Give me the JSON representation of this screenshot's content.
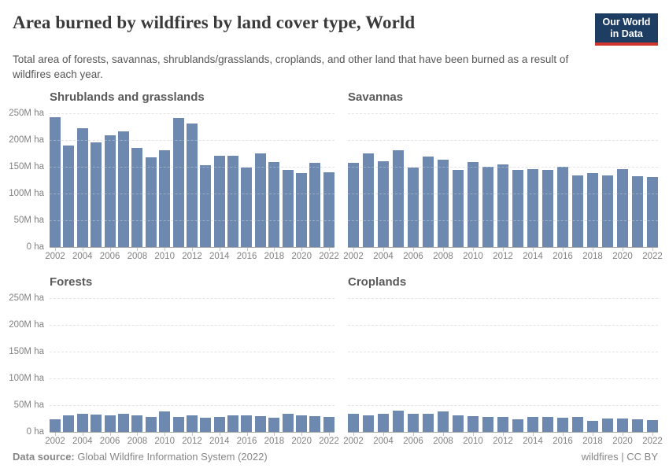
{
  "header": {
    "title": "Area burned by wildfires by land cover type, World",
    "subtitle": "Total area of forests, savannas, shrublands/grasslands, croplands, and other land that have been burned as a result of wildfires each year.",
    "logo": {
      "line1": "Our World",
      "line2": "in Data",
      "bg_color": "#1d3d63",
      "accent_color": "#d0342c"
    }
  },
  "footer": {
    "datasource_label": "Data source:",
    "datasource_value": " Global Wildfire Information System (2022)",
    "license": "wildfires | CC BY"
  },
  "colors": {
    "bar": "#6d89b0",
    "gridline": "#d9d9d9",
    "axis_text": "#828282"
  },
  "y_axis": {
    "max": 250,
    "ticks": [
      {
        "value": 250,
        "label": "250M ha"
      },
      {
        "value": 200,
        "label": "200M ha"
      },
      {
        "value": 150,
        "label": "150M ha"
      },
      {
        "value": 100,
        "label": "100M ha"
      },
      {
        "value": 50,
        "label": "50M ha"
      },
      {
        "value": 0,
        "label": "0 ha"
      }
    ]
  },
  "x_axis": {
    "label_interval": 2
  },
  "chart_data": [
    {
      "type": "bar",
      "title": "Shrublands and grasslands",
      "xlabel": "",
      "ylabel": "",
      "unit": "M ha",
      "ylim": [
        0,
        250
      ],
      "grid": "dashed",
      "legend": "none",
      "categories": [
        "2002",
        "2003",
        "2004",
        "2005",
        "2006",
        "2007",
        "2008",
        "2009",
        "2010",
        "2011",
        "2012",
        "2013",
        "2014",
        "2015",
        "2016",
        "2017",
        "2018",
        "2019",
        "2020",
        "2021",
        "2022"
      ],
      "values": [
        243,
        190,
        222,
        196,
        209,
        216,
        186,
        168,
        182,
        241,
        231,
        153,
        171,
        171,
        149,
        175,
        160,
        145,
        138,
        158,
        140
      ]
    },
    {
      "type": "bar",
      "title": "Savannas",
      "xlabel": "",
      "ylabel": "",
      "unit": "M ha",
      "ylim": [
        0,
        250
      ],
      "grid": "dashed",
      "legend": "none",
      "categories": [
        "2002",
        "2003",
        "2004",
        "2005",
        "2006",
        "2007",
        "2008",
        "2009",
        "2010",
        "2011",
        "2012",
        "2013",
        "2014",
        "2015",
        "2016",
        "2017",
        "2018",
        "2019",
        "2020",
        "2021",
        "2022"
      ],
      "values": [
        158,
        175,
        161,
        182,
        149,
        170,
        164,
        145,
        159,
        151,
        155,
        144,
        146,
        145,
        150,
        135,
        138,
        134,
        146,
        133,
        132
      ]
    },
    {
      "type": "bar",
      "title": "Forests",
      "xlabel": "",
      "ylabel": "",
      "unit": "M ha",
      "ylim": [
        0,
        250
      ],
      "grid": "dashed",
      "legend": "none",
      "categories": [
        "2002",
        "2003",
        "2004",
        "2005",
        "2006",
        "2007",
        "2008",
        "2009",
        "2010",
        "2011",
        "2012",
        "2013",
        "2014",
        "2015",
        "2016",
        "2017",
        "2018",
        "2019",
        "2020",
        "2021",
        "2022"
      ],
      "values": [
        24,
        32,
        35,
        33,
        31,
        35,
        31,
        29,
        38,
        29,
        32,
        27,
        29,
        32,
        32,
        30,
        27,
        34,
        32,
        30,
        29
      ]
    },
    {
      "type": "bar",
      "title": "Croplands",
      "xlabel": "",
      "ylabel": "",
      "unit": "M ha",
      "ylim": [
        0,
        250
      ],
      "grid": "dashed",
      "legend": "none",
      "categories": [
        "2002",
        "2003",
        "2004",
        "2005",
        "2006",
        "2007",
        "2008",
        "2009",
        "2010",
        "2011",
        "2012",
        "2013",
        "2014",
        "2015",
        "2016",
        "2017",
        "2018",
        "2019",
        "2020",
        "2021",
        "2022"
      ],
      "values": [
        34,
        32,
        35,
        40,
        35,
        34,
        38,
        32,
        30,
        28,
        28,
        24,
        29,
        29,
        27,
        29,
        21,
        26,
        25,
        24,
        22
      ]
    }
  ]
}
